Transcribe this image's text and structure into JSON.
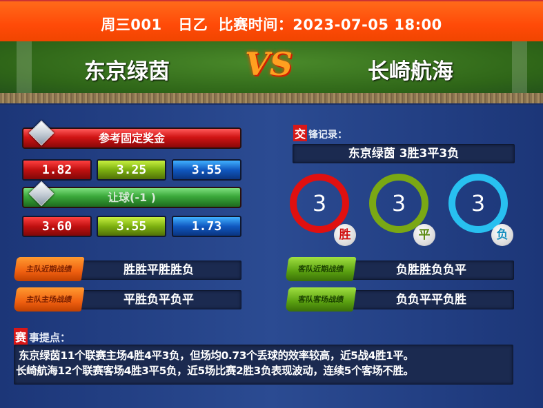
{
  "header": {
    "title": "周三001   日乙  比赛时间：2023-07-05 18:00"
  },
  "match": {
    "home_team": "东京绿茵",
    "vs": "VS",
    "away_team": "长崎航海"
  },
  "odds": {
    "fixed_label": "参考固定奖金",
    "fixed": [
      "1.82",
      "3.25",
      "3.55"
    ],
    "handicap_label": "让球(-1 )",
    "handicap": [
      "3.60",
      "3.55",
      "1.73"
    ]
  },
  "h2h": {
    "label_tag": "交",
    "label_rest": "锋记录：",
    "summary": "东京绿茵 3胜3平3负",
    "win": {
      "count": "3",
      "label": "胜",
      "color": "#e01010"
    },
    "draw": {
      "count": "3",
      "label": "平",
      "color": "#7aa814"
    },
    "loss": {
      "count": "3",
      "label": "负",
      "color": "#28c0f0"
    }
  },
  "records": {
    "home_recent": {
      "tag": "主队近期战绩",
      "value": "胜胜平胜胜负"
    },
    "home_home": {
      "tag": "主队主场战绩",
      "value": "平胜负平负平"
    },
    "away_recent": {
      "tag": "客队近期战绩",
      "value": "负胜胜负负平"
    },
    "away_away": {
      "tag": "客队客场战绩",
      "value": "负负平平负胜"
    }
  },
  "tips": {
    "label_tag": "赛",
    "label_rest": "事提点：",
    "lines": [
      "东京绿茵11个联赛主场4胜4平3负，但场均0.73个丢球的效率较高，近5战4胜1平。",
      "长崎航海12个联赛客场4胜3平5负，近5场比赛2胜3负表现波动，连续5个客场不胜。"
    ]
  }
}
